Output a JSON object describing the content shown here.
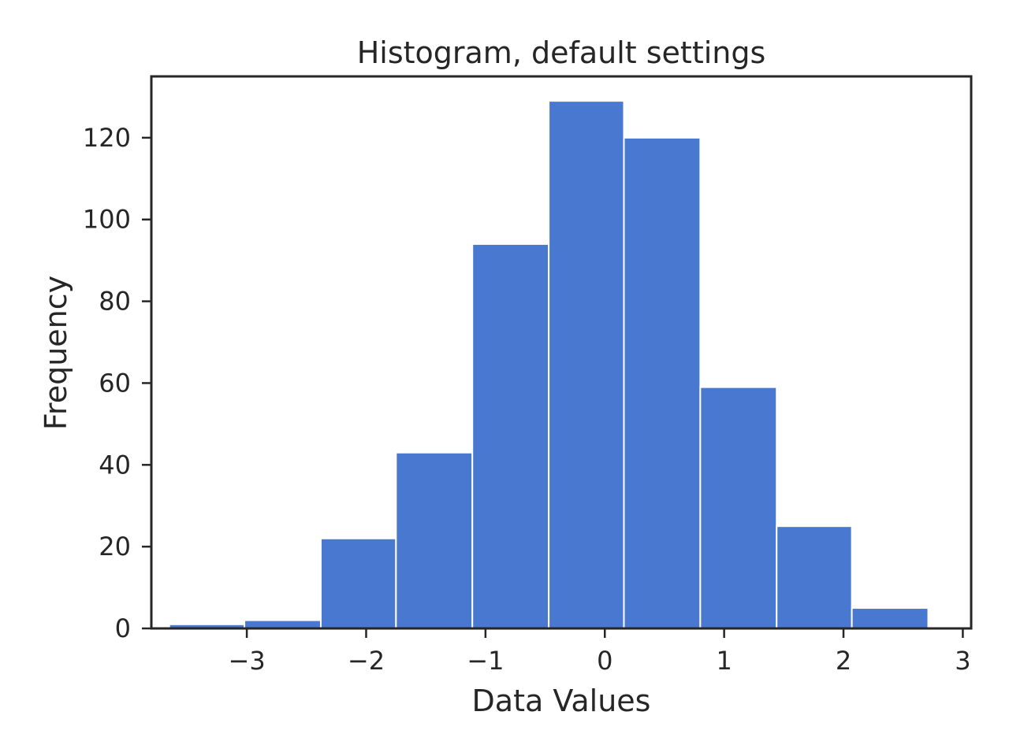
{
  "chart_data": {
    "type": "bar",
    "title": "Histogram, default settings",
    "xlabel": "Data Values",
    "ylabel": "Frequency",
    "xlim": [
      -3.8,
      3.07
    ],
    "ylim": [
      0,
      135
    ],
    "bins": [
      {
        "x0": -3.65,
        "x1": -3.02,
        "count": 1
      },
      {
        "x0": -3.02,
        "x1": -2.38,
        "count": 2
      },
      {
        "x0": -2.38,
        "x1": -1.75,
        "count": 22
      },
      {
        "x0": -1.75,
        "x1": -1.11,
        "count": 43
      },
      {
        "x0": -1.11,
        "x1": -0.47,
        "count": 94
      },
      {
        "x0": -0.47,
        "x1": 0.16,
        "count": 129
      },
      {
        "x0": 0.16,
        "x1": 0.8,
        "count": 120
      },
      {
        "x0": 0.8,
        "x1": 1.44,
        "count": 59
      },
      {
        "x0": 1.44,
        "x1": 2.07,
        "count": 25
      },
      {
        "x0": 2.07,
        "x1": 2.71,
        "count": 5
      }
    ],
    "x_ticks": [
      {
        "value": -3,
        "label": "−3"
      },
      {
        "value": -2,
        "label": "−2"
      },
      {
        "value": -1,
        "label": "−1"
      },
      {
        "value": 0,
        "label": "0"
      },
      {
        "value": 1,
        "label": "1"
      },
      {
        "value": 2,
        "label": "2"
      },
      {
        "value": 3,
        "label": "3"
      }
    ],
    "y_ticks": [
      {
        "value": 0,
        "label": "0"
      },
      {
        "value": 20,
        "label": "20"
      },
      {
        "value": 40,
        "label": "40"
      },
      {
        "value": 60,
        "label": "60"
      },
      {
        "value": 80,
        "label": "80"
      },
      {
        "value": 100,
        "label": "100"
      },
      {
        "value": 120,
        "label": "120"
      }
    ],
    "grid": false,
    "colors": {
      "bar": "#4878cf",
      "bar_edge": "#ffffff",
      "axes": "#262626",
      "text": "#262626"
    }
  }
}
